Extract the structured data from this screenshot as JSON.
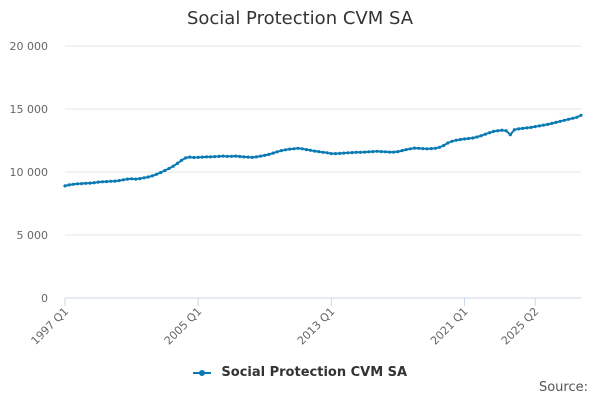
{
  "chart_data": {
    "type": "line",
    "title": "Social Protection CVM SA",
    "xlabel": "",
    "ylabel": "",
    "ylim": [
      0,
      20000
    ],
    "yticks": [
      {
        "value": 0,
        "label": "0"
      },
      {
        "value": 5000,
        "label": "5 000"
      },
      {
        "value": 10000,
        "label": "10 000"
      },
      {
        "value": 15000,
        "label": "15 000"
      },
      {
        "value": 20000,
        "label": "20 000"
      }
    ],
    "xticks": [
      {
        "value": "1997 Q1",
        "label": "1997 Q1"
      },
      {
        "value": "2005 Q1",
        "label": "2005 Q1"
      },
      {
        "value": "2013 Q1",
        "label": "2013 Q1"
      },
      {
        "value": "2021 Q1",
        "label": "2021 Q1"
      },
      {
        "value": "2025 Q2",
        "label": "2025 Q2"
      }
    ],
    "grid": true,
    "legend_position": "bottom",
    "series": [
      {
        "name": "Social Protection CVM SA",
        "color": "#0a7ab4",
        "start": "1997 Q1",
        "values": [
          8900,
          8980,
          9020,
          9060,
          9080,
          9100,
          9120,
          9150,
          9200,
          9220,
          9240,
          9260,
          9280,
          9320,
          9380,
          9440,
          9460,
          9440,
          9480,
          9540,
          9600,
          9700,
          9820,
          9960,
          10120,
          10280,
          10460,
          10680,
          10920,
          11120,
          11180,
          11150,
          11160,
          11180,
          11200,
          11200,
          11220,
          11240,
          11260,
          11240,
          11250,
          11260,
          11230,
          11200,
          11180,
          11160,
          11200,
          11260,
          11320,
          11400,
          11500,
          11600,
          11700,
          11760,
          11820,
          11840,
          11880,
          11840,
          11780,
          11720,
          11660,
          11620,
          11560,
          11520,
          11460,
          11460,
          11480,
          11500,
          11520,
          11540,
          11560,
          11560,
          11580,
          11600,
          11620,
          11640,
          11620,
          11600,
          11580,
          11580,
          11620,
          11700,
          11780,
          11840,
          11900,
          11880,
          11860,
          11840,
          11860,
          11880,
          11960,
          12100,
          12300,
          12440,
          12520,
          12580,
          12620,
          12660,
          12700,
          12780,
          12880,
          13000,
          13120,
          13220,
          13280,
          13320,
          13280,
          12960,
          13360,
          13420,
          13460,
          13500,
          13540,
          13600,
          13660,
          13720,
          13780,
          13860,
          13940,
          14020,
          14100,
          14180,
          14260,
          14340,
          14500
        ]
      }
    ]
  },
  "legend": {
    "label": "Social Protection CVM SA"
  },
  "source": "Source:"
}
